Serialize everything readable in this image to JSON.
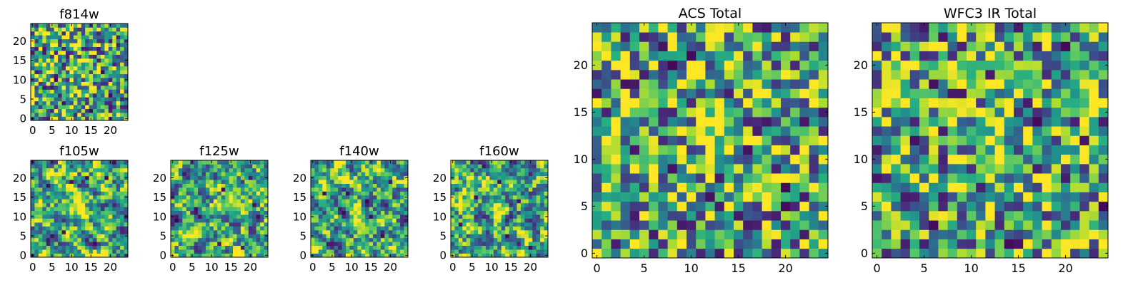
{
  "chart_data": [
    {
      "type": "heatmap",
      "title": "f814w",
      "colormap": "viridis",
      "size": 25,
      "seed": 814,
      "smooth": 0,
      "xticks": [
        0,
        5,
        10,
        15,
        20
      ],
      "yticks": [
        0,
        5,
        10,
        15,
        20
      ],
      "xlim": [
        -0.5,
        24.5
      ],
      "ylim": [
        -0.5,
        24.5
      ],
      "bright_spot": [
        12,
        12
      ],
      "dark_cells": [
        [
          3,
          17
        ],
        [
          8,
          4
        ],
        [
          18,
          12
        ],
        [
          20,
          6
        ],
        [
          6,
          10
        ],
        [
          15,
          2
        ]
      ]
    },
    {
      "type": "heatmap",
      "title": "f105w",
      "colormap": "viridis",
      "size": 25,
      "seed": 105,
      "smooth": 1,
      "xticks": [
        0,
        5,
        10,
        15,
        20
      ],
      "yticks": [
        0,
        5,
        10,
        15,
        20
      ],
      "xlim": [
        -0.5,
        24.5
      ],
      "ylim": [
        -0.5,
        24.5
      ],
      "bright_spot": [
        12,
        12
      ],
      "dark_cells": [
        [
          4,
          18
        ],
        [
          10,
          19
        ],
        [
          14,
          20
        ],
        [
          19,
          20
        ],
        [
          8,
          6
        ],
        [
          16,
          3
        ]
      ]
    },
    {
      "type": "heatmap",
      "title": "f125w",
      "colormap": "viridis",
      "size": 25,
      "seed": 125,
      "smooth": 1,
      "xticks": [
        0,
        5,
        10,
        15,
        20
      ],
      "yticks": [
        0,
        5,
        10,
        15,
        20
      ],
      "xlim": [
        -0.5,
        24.5
      ],
      "ylim": [
        -0.5,
        24.5
      ],
      "bright_spot": [
        12,
        12
      ],
      "dark_cells": [
        [
          13,
          17
        ],
        [
          21,
          13
        ],
        [
          6,
          12
        ],
        [
          12,
          3
        ],
        [
          18,
          2
        ],
        [
          20,
          20
        ]
      ]
    },
    {
      "type": "heatmap",
      "title": "f140w",
      "colormap": "viridis",
      "size": 25,
      "seed": 140,
      "smooth": 1,
      "xticks": [
        0,
        5,
        10,
        15,
        20
      ],
      "yticks": [
        0,
        5,
        10,
        15,
        20
      ],
      "xlim": [
        -0.5,
        24.5
      ],
      "ylim": [
        -0.5,
        24.5
      ],
      "bright_spot": [
        12,
        12
      ],
      "dark_cells": [
        [
          3,
          16
        ],
        [
          9,
          16
        ],
        [
          15,
          10
        ],
        [
          20,
          19
        ],
        [
          5,
          3
        ],
        [
          18,
          5
        ]
      ]
    },
    {
      "type": "heatmap",
      "title": "f160w",
      "colormap": "viridis",
      "size": 25,
      "seed": 160,
      "smooth": 1,
      "xticks": [
        0,
        5,
        10,
        15,
        20
      ],
      "yticks": [
        0,
        5,
        10,
        15,
        20
      ],
      "xlim": [
        -0.5,
        24.5
      ],
      "ylim": [
        -0.5,
        24.5
      ],
      "bright_spot": [
        12,
        12
      ],
      "dark_cells": [
        [
          6,
          15
        ],
        [
          12,
          19
        ],
        [
          17,
          14
        ],
        [
          2,
          8
        ],
        [
          14,
          5
        ],
        [
          20,
          2
        ]
      ]
    },
    {
      "type": "heatmap",
      "title": "ACS Total",
      "colormap": "viridis",
      "size": 25,
      "seed": 999,
      "smooth": 0,
      "xticks": [
        0,
        5,
        10,
        15,
        20
      ],
      "yticks": [
        0,
        5,
        10,
        15,
        20
      ],
      "xlim": [
        -0.5,
        24.5
      ],
      "ylim": [
        -0.5,
        24.5
      ],
      "bright_spot": [
        12,
        13
      ],
      "dark_cells": [
        [
          3,
          18
        ],
        [
          4,
          18
        ],
        [
          8,
          20
        ],
        [
          10,
          21
        ],
        [
          0,
          17
        ],
        [
          4,
          11
        ],
        [
          8,
          9
        ],
        [
          18,
          14
        ],
        [
          16,
          11
        ],
        [
          20,
          7
        ],
        [
          20,
          5
        ],
        [
          12,
          6
        ],
        [
          4,
          4
        ],
        [
          16,
          3
        ],
        [
          22,
          14
        ],
        [
          7,
          22
        ]
      ]
    },
    {
      "type": "heatmap",
      "title": "WFC3 IR Total",
      "colormap": "viridis",
      "size": 25,
      "seed": 777,
      "smooth": 0,
      "xticks": [
        0,
        5,
        10,
        15,
        20
      ],
      "yticks": [
        0,
        5,
        10,
        15,
        20
      ],
      "xlim": [
        -0.5,
        24.5
      ],
      "ylim": [
        -0.5,
        24.5
      ],
      "bright_spot": [
        12,
        12
      ],
      "dark_cells": [
        [
          8,
          17
        ],
        [
          9,
          17
        ],
        [
          6,
          18
        ],
        [
          12,
          19
        ],
        [
          4,
          12
        ],
        [
          17,
          14
        ],
        [
          22,
          12
        ],
        [
          0,
          8
        ],
        [
          14,
          1
        ],
        [
          15,
          1
        ],
        [
          6,
          3
        ],
        [
          20,
          22
        ],
        [
          24,
          5
        ],
        [
          7,
          23
        ]
      ]
    }
  ]
}
